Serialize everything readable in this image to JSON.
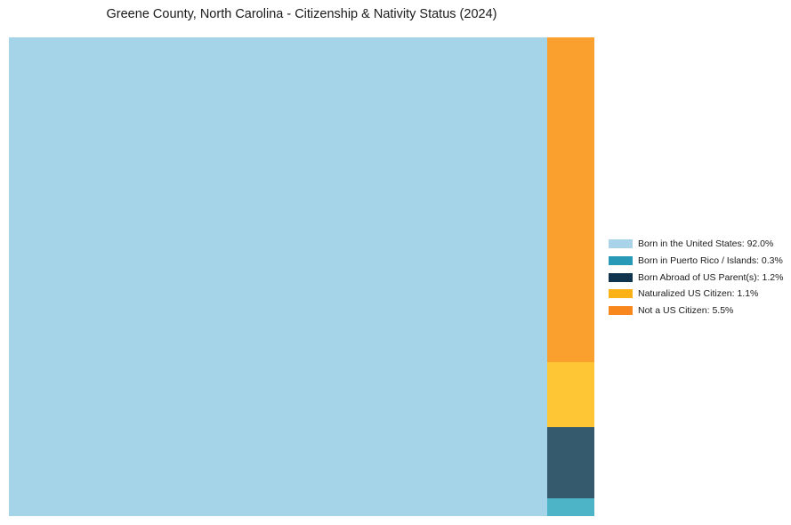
{
  "title": "Greene County, North Carolina - Citizenship & Nativity Status (2024)",
  "chart_data": {
    "type": "treemap",
    "title": "Greene County, North Carolina - Citizenship & Nativity Status (2024)",
    "unit": "%",
    "slices": [
      {
        "label": "Born in the United States",
        "value": 92.0,
        "tile_color": "#a5d3e8",
        "legend_color": "#a8d3e9"
      },
      {
        "label": "Born in Puerto Rico / Islands",
        "value": 0.3,
        "tile_color": "#4db3c6",
        "legend_color": "#2899b6"
      },
      {
        "label": "Born Abroad of US Parent(s)",
        "value": 1.2,
        "tile_color": "#35596d",
        "legend_color": "#10344e"
      },
      {
        "label": "Naturalized US Citizen",
        "value": 1.1,
        "tile_color": "#fec535",
        "legend_color": "#fcb216"
      },
      {
        "label": "Not a US Citizen",
        "value": 5.5,
        "tile_color": "#f9a02f",
        "legend_color": "#f8881d"
      }
    ],
    "layout": {
      "main_tile": "Born in the United States",
      "column_stack_top_to_bottom": [
        "Not a US Citizen",
        "Naturalized US Citizen",
        "Born Abroad of US Parent(s)",
        "Born in Puerto Rico / Islands"
      ],
      "legend_position": "right"
    }
  },
  "legend": {
    "items": [
      {
        "label": "Born in the United States: 92.0%"
      },
      {
        "label": "Born in Puerto Rico / Islands: 0.3%"
      },
      {
        "label": "Born Abroad of US Parent(s): 1.2%"
      },
      {
        "label": "Naturalized US Citizen: 1.1%"
      },
      {
        "label": "Not a US Citizen: 5.5%"
      }
    ]
  }
}
